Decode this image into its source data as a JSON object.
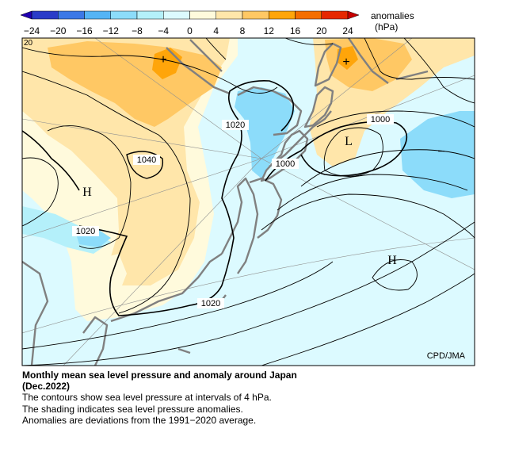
{
  "colorbar": {
    "ticks": [
      "−24",
      "−20",
      "−16",
      "−12",
      "−8",
      "−4",
      "0",
      "4",
      "8",
      "12",
      "16",
      "20",
      "24"
    ],
    "label_line1": "anomalies",
    "label_line2": "(hPa)",
    "colors": [
      "#2a3cc8",
      "#3c78e6",
      "#55b4f5",
      "#8cdcfa",
      "#b4f0fa",
      "#dcfaff",
      "#fffadc",
      "#ffe6aa",
      "#ffc864",
      "#ffa50a",
      "#f56e00",
      "#e62800"
    ]
  },
  "map": {
    "contour_labels": [
      "1040",
      "1020",
      "1020",
      "1000",
      "1000",
      "1020",
      "20"
    ],
    "pressure_centers": [
      "H",
      "L",
      "H"
    ],
    "anomaly_centers": [
      "+",
      "+",
      "−"
    ],
    "credit": "CPD/JMA",
    "colors": {
      "positive_light": "#fffadc",
      "positive_mid": "#ffe6aa",
      "positive_strong": "#ffc864",
      "positive_max": "#ffa50a",
      "negative_light": "#b4f0fa",
      "negative_mid": "#8cdcfa",
      "ocean_background": "#dcfaff",
      "coast": "#808080"
    }
  },
  "caption": {
    "title_line1": "Monthly mean sea level pressure and anomaly around Japan",
    "title_line2": "(Dec.2022)",
    "line1": "The contours show sea level pressure at intervals of 4 hPa.",
    "line2": "The shading indicates sea level pressure anomalies.",
    "line3": "Anomalies are deviations from the 1991−2020 average."
  }
}
